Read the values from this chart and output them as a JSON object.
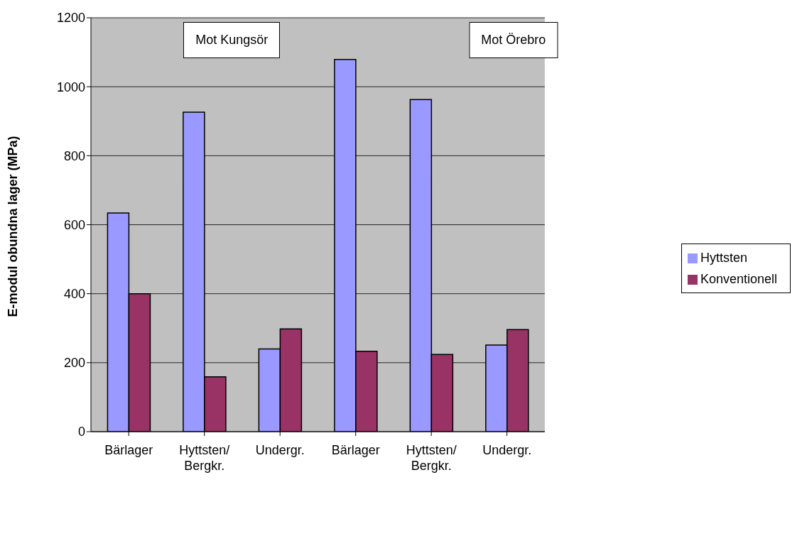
{
  "chart_data": {
    "type": "bar",
    "ylabel": "E-modul obundna lager (MPa)",
    "categories": [
      "Bärlager",
      "Hyttsten/\nBergkr.",
      "Undergr.",
      "Bärlager",
      "Hyttsten/\nBergkr.",
      "Undergr."
    ],
    "series": [
      {
        "name": "Hyttsten",
        "color": "#9999ff",
        "values": [
          634,
          926,
          240,
          1079,
          963,
          251
        ]
      },
      {
        "name": "Konventionell",
        "color": "#993366",
        "values": [
          400,
          159,
          298,
          233,
          224,
          296
        ]
      }
    ],
    "ylim": [
      0,
      1200
    ],
    "yticks": [
      0,
      200,
      400,
      600,
      800,
      1000,
      1200
    ],
    "grid": "y",
    "legend": "right",
    "annotations": [
      "Mot Kungsör",
      "Mot Örebro"
    ]
  }
}
